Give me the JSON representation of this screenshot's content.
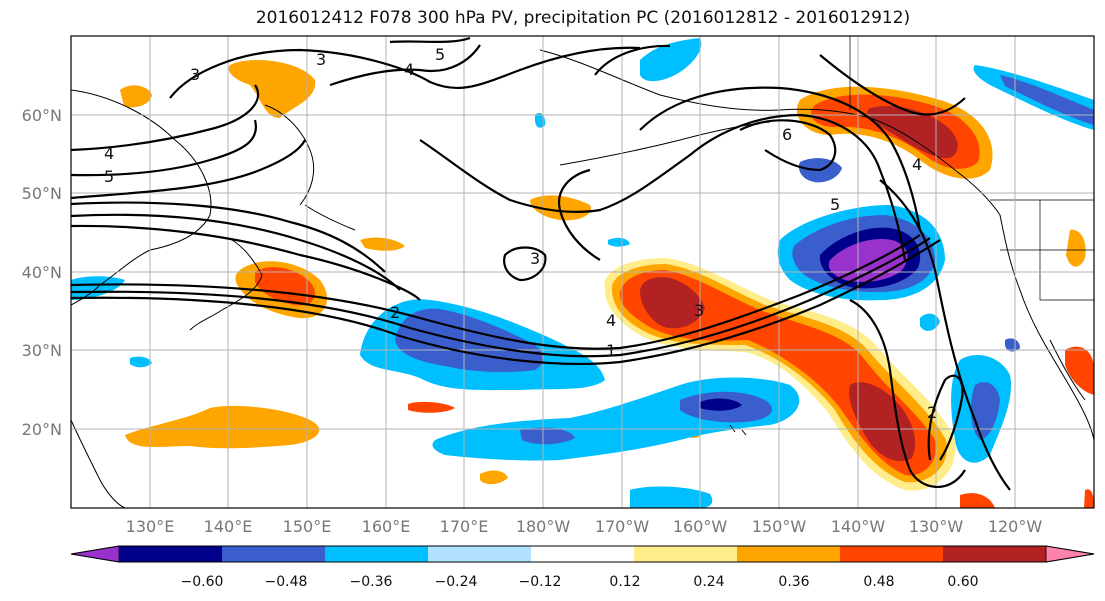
{
  "title": "2016012412 F078 300 hPa PV, precipitation PC (2016012812 - 2016012912)",
  "map": {
    "lat_labels": [
      "60°N",
      "50°N",
      "40°N",
      "30°N",
      "20°N"
    ],
    "lon_labels": [
      "130°E",
      "140°E",
      "150°E",
      "160°E",
      "170°E",
      "180°W",
      "170°W",
      "160°W",
      "150°W",
      "140°W",
      "130°W",
      "120°W"
    ],
    "extent": {
      "lon_min": 120,
      "lon_max": 250,
      "lat_min": 10,
      "lat_max": 70
    },
    "contour_labels": [
      "3",
      "3",
      "4",
      "5",
      "4",
      "5",
      "3",
      "2",
      "4",
      "3",
      "1",
      "6",
      "5",
      "4",
      "2"
    ]
  },
  "colorbar": {
    "tick_labels": [
      "−0.60",
      "−0.48",
      "−0.36",
      "−0.24",
      "−0.12",
      "0.12",
      "0.24",
      "0.36",
      "0.48",
      "0.60"
    ],
    "colors": [
      "#9932CC",
      "#00008B",
      "#3A5FCD",
      "#00BFFF",
      "#B0E2FF",
      "#FFFFFF",
      "#FFEC8B",
      "#FFA500",
      "#FF4500",
      "#B22222",
      "#FF82AB"
    ]
  }
}
